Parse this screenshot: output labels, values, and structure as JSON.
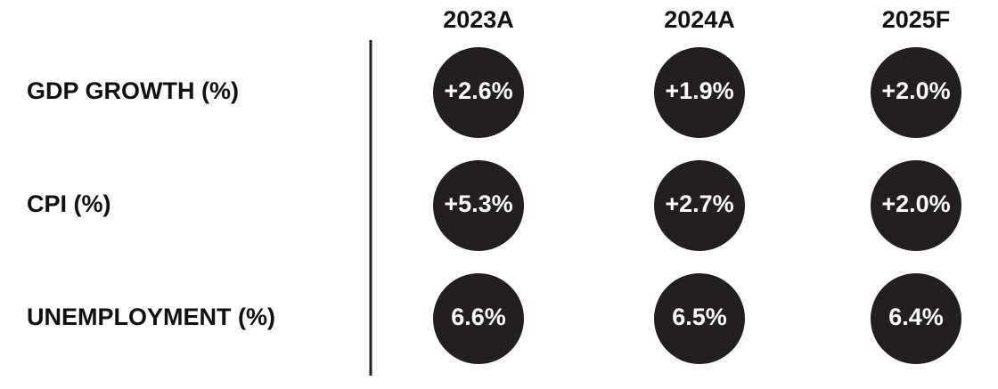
{
  "table": {
    "columns": [
      "2023A",
      "2024A",
      "2025F"
    ],
    "rows": [
      {
        "label": "GDP GROWTH (%)",
        "values": [
          "+2.6%",
          "+1.9%",
          "+2.0%"
        ]
      },
      {
        "label": "CPI (%)",
        "values": [
          "+5.3%",
          "+2.7%",
          "+2.0%"
        ]
      },
      {
        "label": "UNEMPLOYMENT (%)",
        "values": [
          "6.6%",
          "6.5%",
          "6.4%"
        ]
      }
    ]
  }
}
